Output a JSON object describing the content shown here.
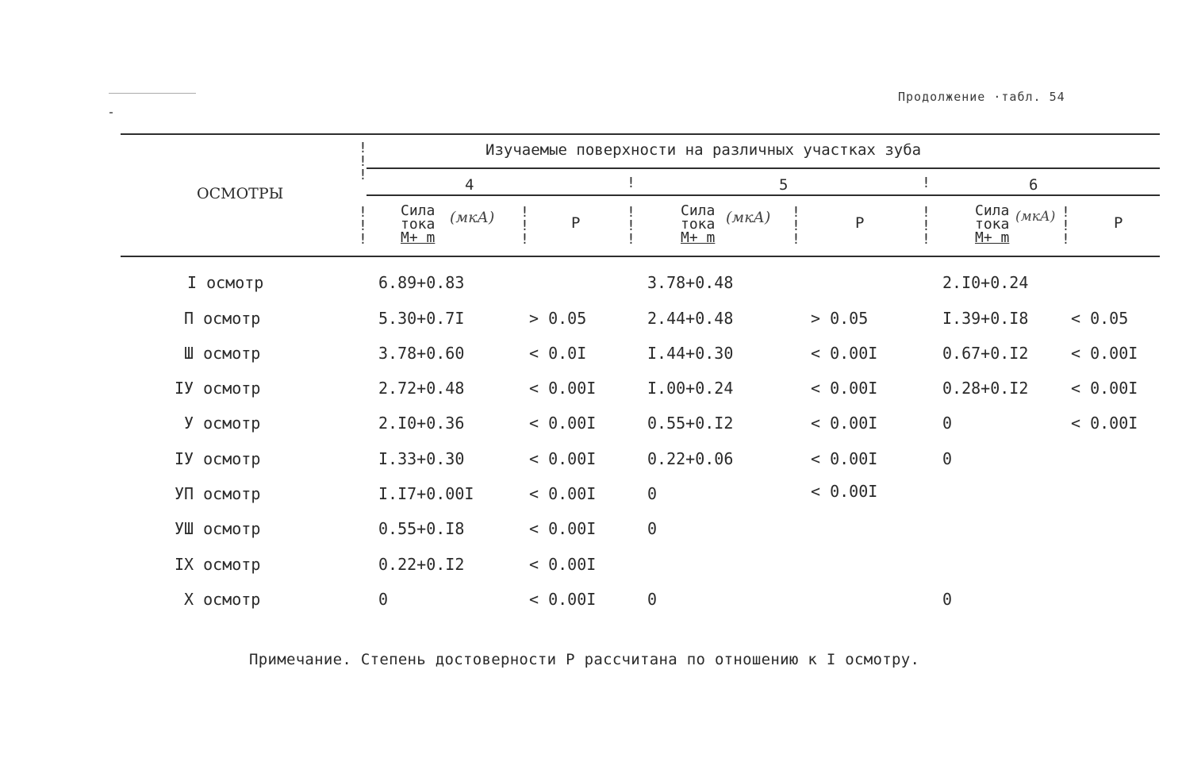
{
  "continuation": "Продолжение ·табл. 54",
  "table": {
    "row_header": "ОСМОТРЫ",
    "group_title": "Изучаемые поверхности на различных участках зуба",
    "groups": [
      {
        "number": "4",
        "value_label": [
          "Сила",
          "тока",
          "M+ m"
        ],
        "value_unit": "(мкА)",
        "p_label": "P"
      },
      {
        "number": "5",
        "value_label": [
          "Сила",
          "тока",
          "M+ m"
        ],
        "value_unit": "(мкА)",
        "p_label": "P"
      },
      {
        "number": "6",
        "value_label": [
          "Сила",
          "тока",
          "M+ m"
        ],
        "value_unit": "(мкА)",
        "p_label": "P"
      }
    ],
    "rows": [
      {
        "label": "I осмотр",
        "cells": [
          "6.89+0.83",
          "",
          "3.78+0.48",
          "",
          "2.I0+0.24",
          ""
        ]
      },
      {
        "label": "П осмотр",
        "cells": [
          "5.30+0.7I",
          "> 0.05",
          "2.44+0.48",
          "> 0.05",
          "I.39+0.I8",
          "< 0.05"
        ]
      },
      {
        "label": "Ш осмотр",
        "cells": [
          "3.78+0.60",
          "< 0.0I",
          "I.44+0.30",
          "< 0.00I",
          "0.67+0.I2",
          "< 0.00I"
        ]
      },
      {
        "label": "IУ осмотр",
        "cells": [
          "2.72+0.48",
          "< 0.00I",
          "I.00+0.24",
          "< 0.00I",
          "0.28+0.I2",
          "< 0.00I"
        ]
      },
      {
        "label": "У осмотр",
        "cells": [
          "2.I0+0.36",
          "< 0.00I",
          "0.55+0.I2",
          "< 0.00I",
          "0",
          "< 0.00I"
        ]
      },
      {
        "label": "IУ осмотр",
        "cells": [
          "I.33+0.30",
          "< 0.00I",
          "0.22+0.06",
          "< 0.00I",
          "0",
          ""
        ]
      },
      {
        "label": "УП осмотр",
        "cells": [
          "I.I7+0.00I",
          "< 0.00I",
          "0",
          "< 0.00I",
          "",
          ""
        ]
      },
      {
        "label": "УШ осмотр",
        "cells": [
          "0.55+0.I8",
          "< 0.00I",
          "0",
          "",
          "",
          ""
        ]
      },
      {
        "label": "IX осмотр",
        "cells": [
          "0.22+0.I2",
          "< 0.00I",
          "",
          "",
          "",
          ""
        ]
      },
      {
        "label": "X осмотр",
        "cells": [
          "0",
          "< 0.00I",
          "0",
          "",
          "0",
          ""
        ]
      }
    ]
  },
  "note": "Примечание. Степень достоверности P рассчитана по отношению к I осмотру."
}
